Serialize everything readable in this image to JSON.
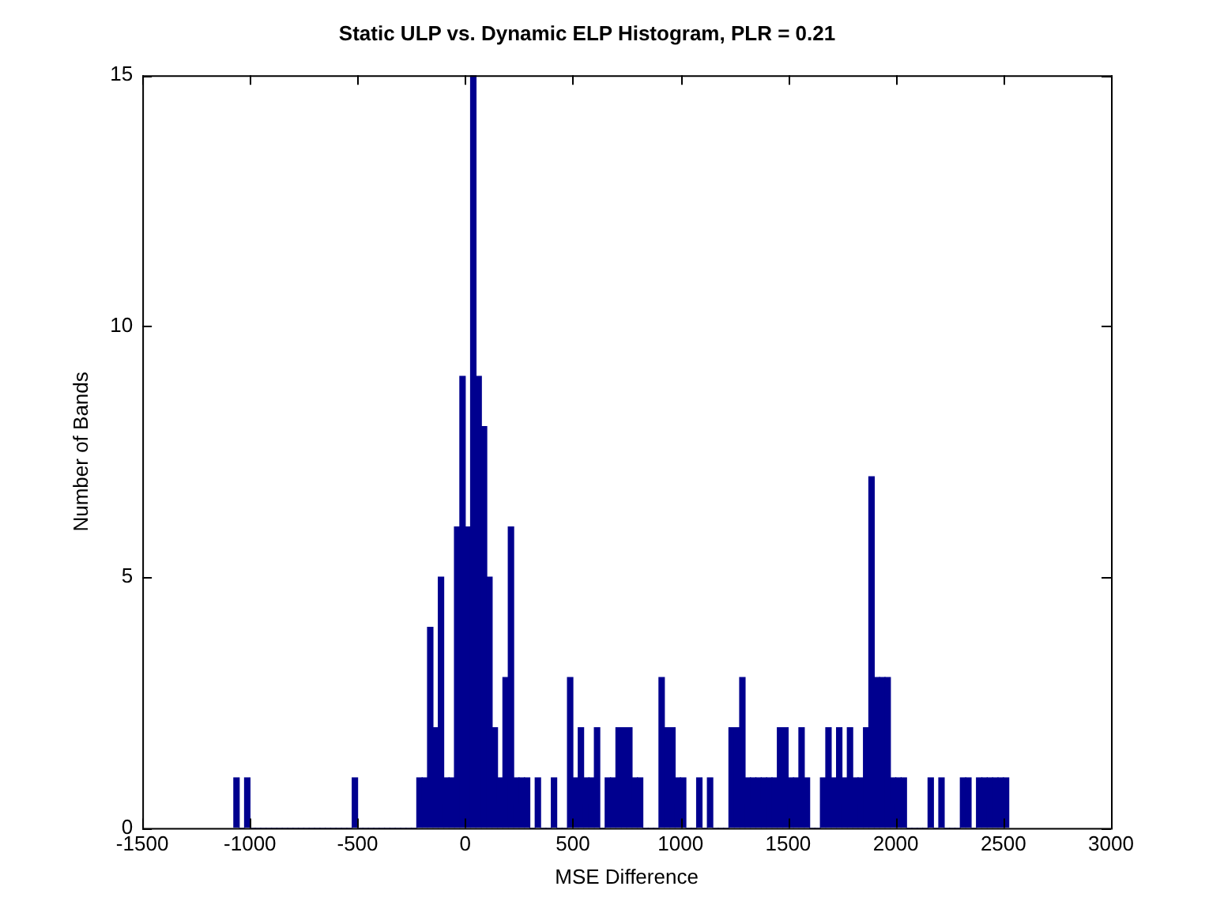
{
  "chart_data": {
    "type": "histogram",
    "title": "Static ULP vs. Dynamic ELP Histogram, PLR = 0.21",
    "xlabel": "MSE Difference",
    "ylabel": "Number of Bands",
    "color": "#00008f",
    "bins": [
      -1075,
      -1050,
      -1025,
      -1000,
      -975,
      -950,
      -925,
      -900,
      -875,
      -850,
      -825,
      -800,
      -775,
      -750,
      -725,
      -700,
      -675,
      -650,
      -625,
      -600,
      -575,
      -550,
      -525,
      -500,
      -475,
      -450,
      -425,
      -400,
      -375,
      -350,
      -325,
      -300,
      -275,
      -250,
      -225,
      -200,
      -175,
      -150,
      -125,
      -100,
      -75,
      -50,
      -25,
      0,
      25,
      50,
      75,
      100,
      125,
      150,
      175,
      200,
      225,
      250,
      275,
      300,
      325,
      350,
      375,
      400,
      425,
      450,
      475,
      500,
      525,
      550,
      575,
      600,
      625,
      650,
      675,
      700,
      725,
      750,
      775,
      800,
      825,
      850,
      875,
      900,
      925,
      950,
      975,
      1000,
      1025,
      1050,
      1075,
      1100,
      1125,
      1150,
      1175,
      1200,
      1225,
      1250,
      1275,
      1300,
      1325,
      1350,
      1375,
      1400,
      1425,
      1450,
      1475,
      1500,
      1525,
      1550,
      1575,
      1600,
      1625,
      1650,
      1675,
      1700,
      1725,
      1750,
      1775,
      1800,
      1825,
      1850,
      1875,
      1900,
      1925,
      1950,
      1975,
      2000,
      2025,
      2050,
      2075,
      2100,
      2125,
      2150,
      2175,
      2200,
      2225,
      2250,
      2275,
      2300,
      2325,
      2350,
      2375,
      2400,
      2425,
      2450,
      2475,
      2500,
      2525
    ],
    "values": [
      1,
      0,
      1,
      0,
      0,
      0,
      0,
      0,
      0,
      0,
      0,
      0,
      0,
      0,
      0,
      0,
      0,
      0,
      0,
      0,
      0,
      0,
      1,
      0,
      0,
      0,
      0,
      0,
      0,
      0,
      0,
      0,
      0,
      0,
      1,
      1,
      4,
      2,
      5,
      1,
      1,
      6,
      9,
      6,
      15,
      9,
      8,
      5,
      2,
      1,
      3,
      6,
      1,
      1,
      1,
      0,
      1,
      0,
      0,
      1,
      0,
      0,
      3,
      1,
      2,
      1,
      1,
      2,
      0,
      1,
      1,
      2,
      2,
      2,
      1,
      1,
      0,
      0,
      0,
      3,
      2,
      2,
      1,
      1,
      0,
      0,
      1,
      0,
      1,
      0,
      0,
      0,
      2,
      2,
      3,
      1,
      1,
      1,
      1,
      1,
      1,
      2,
      2,
      1,
      1,
      2,
      1,
      0,
      0,
      1,
      2,
      1,
      2,
      1,
      2,
      1,
      1,
      2,
      7,
      3,
      3,
      3,
      1,
      1,
      1,
      0,
      0,
      0,
      0,
      1,
      0,
      1,
      0,
      0,
      0,
      1,
      1,
      0,
      1,
      1,
      1,
      1,
      1,
      1
    ],
    "xlim": [
      -1500,
      3000
    ],
    "xticks": [
      -1500,
      -1000,
      -500,
      0,
      500,
      1000,
      1500,
      2000,
      2500,
      3000
    ],
    "ylim": [
      0,
      15
    ],
    "yticks": [
      0,
      5,
      10,
      15
    ],
    "grid": false
  }
}
